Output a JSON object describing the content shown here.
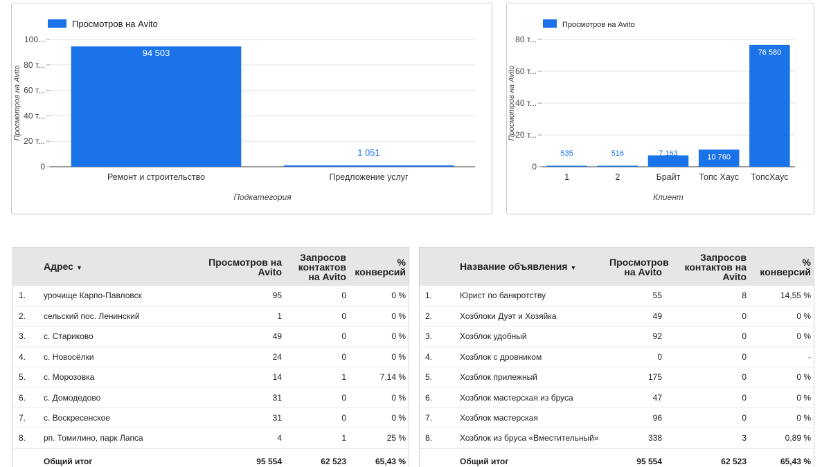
{
  "chart_data": [
    {
      "type": "bar",
      "legend": "Просмотров на Avito",
      "legend_position": "top-left",
      "xlabel": "Подкатегория",
      "ylabel": "Просмотров на Avito",
      "ylim": [
        0,
        100000
      ],
      "y_ticks": [
        "0",
        "20 т...",
        "40 т...",
        "60 т...",
        "80 т...",
        "100..."
      ],
      "y_tick_values": [
        0,
        20000,
        40000,
        60000,
        80000,
        100000
      ],
      "categories": [
        "Ремонт и строительство",
        "Предложение услуг"
      ],
      "values": [
        94503,
        1051
      ],
      "value_labels": [
        "94 503",
        "1 051"
      ],
      "color": "#1a73e8",
      "grid": true
    },
    {
      "type": "bar",
      "legend": "Просмотров на Avito",
      "legend_position": "top-left",
      "xlabel": "Клиент",
      "ylabel": "Просмотров на Avito",
      "ylim": [
        0,
        80000
      ],
      "y_ticks": [
        "0",
        "20 т...",
        "40 т...",
        "60 т...",
        "80 т..."
      ],
      "y_tick_values": [
        0,
        20000,
        40000,
        60000,
        80000
      ],
      "categories": [
        "1",
        "2",
        "Брайт",
        "Топс Хаус",
        "ТопсХаус"
      ],
      "values": [
        535,
        516,
        7163,
        10760,
        76580
      ],
      "value_labels": [
        "535",
        "516",
        "7 163",
        "10 760",
        "76 580"
      ],
      "color": "#1a73e8",
      "grid": true
    }
  ],
  "tables": {
    "left": {
      "headers": {
        "name": "Адрес",
        "views": "Просмотров на Avito",
        "contacts": "Запросов контактов на Avito",
        "conversion": "% конверсий"
      },
      "rows": [
        {
          "idx": "1.",
          "name": "урочище Карпо-Павловск",
          "views": "95",
          "contacts": "0",
          "conversion": "0 %"
        },
        {
          "idx": "2.",
          "name": "сельский пос. Ленинский",
          "views": "1",
          "contacts": "0",
          "conversion": "0 %"
        },
        {
          "idx": "3.",
          "name": "с. Стариково",
          "views": "49",
          "contacts": "0",
          "conversion": "0 %"
        },
        {
          "idx": "4.",
          "name": "с. Новосёлки",
          "views": "24",
          "contacts": "0",
          "conversion": "0 %"
        },
        {
          "idx": "5.",
          "name": "с. Морозовка",
          "views": "14",
          "contacts": "1",
          "conversion": "7,14 %"
        },
        {
          "idx": "6.",
          "name": "с. Домодедово",
          "views": "31",
          "contacts": "0",
          "conversion": "0 %"
        },
        {
          "idx": "7.",
          "name": "с. Воскресенское",
          "views": "31",
          "contacts": "0",
          "conversion": "0 %"
        },
        {
          "idx": "8.",
          "name": "рп. Томилино, парк Лапса",
          "views": "4",
          "contacts": "1",
          "conversion": "25 %"
        }
      ],
      "total": {
        "label": "Общий итог",
        "views": "95 554",
        "contacts": "62 523",
        "conversion": "65,43 %"
      }
    },
    "right": {
      "headers": {
        "name": "Название объявления",
        "views": "Просмотров на Avito",
        "contacts": "Запросов контактов на Avito",
        "conversion": "% конверсий"
      },
      "rows": [
        {
          "idx": "1.",
          "name": "Юрист по банкротству",
          "views": "55",
          "contacts": "8",
          "conversion": "14,55 %"
        },
        {
          "idx": "2.",
          "name": "Хозблоки Дуэт и Хозяйка",
          "views": "49",
          "contacts": "0",
          "conversion": "0 %"
        },
        {
          "idx": "3.",
          "name": "Хозблок удобный",
          "views": "92",
          "contacts": "0",
          "conversion": "0 %"
        },
        {
          "idx": "4.",
          "name": "Хозблок с дровником",
          "views": "0",
          "contacts": "0",
          "conversion": "-"
        },
        {
          "idx": "5.",
          "name": "Хозблок прилежный",
          "views": "175",
          "contacts": "0",
          "conversion": "0 %"
        },
        {
          "idx": "6.",
          "name": "Хозблок мастерская из бруса",
          "views": "47",
          "contacts": "0",
          "conversion": "0 %"
        },
        {
          "idx": "7.",
          "name": "Хозблок мастерская",
          "views": "96",
          "contacts": "0",
          "conversion": "0 %"
        },
        {
          "idx": "8.",
          "name": "Хозблок из бруса «Вместительный»",
          "views": "338",
          "contacts": "3",
          "conversion": "0,89 %"
        }
      ],
      "total": {
        "label": "Общий итог",
        "views": "95 554",
        "contacts": "62 523",
        "conversion": "65,43 %"
      }
    }
  },
  "icons": {
    "sort": "caret-down-icon"
  }
}
